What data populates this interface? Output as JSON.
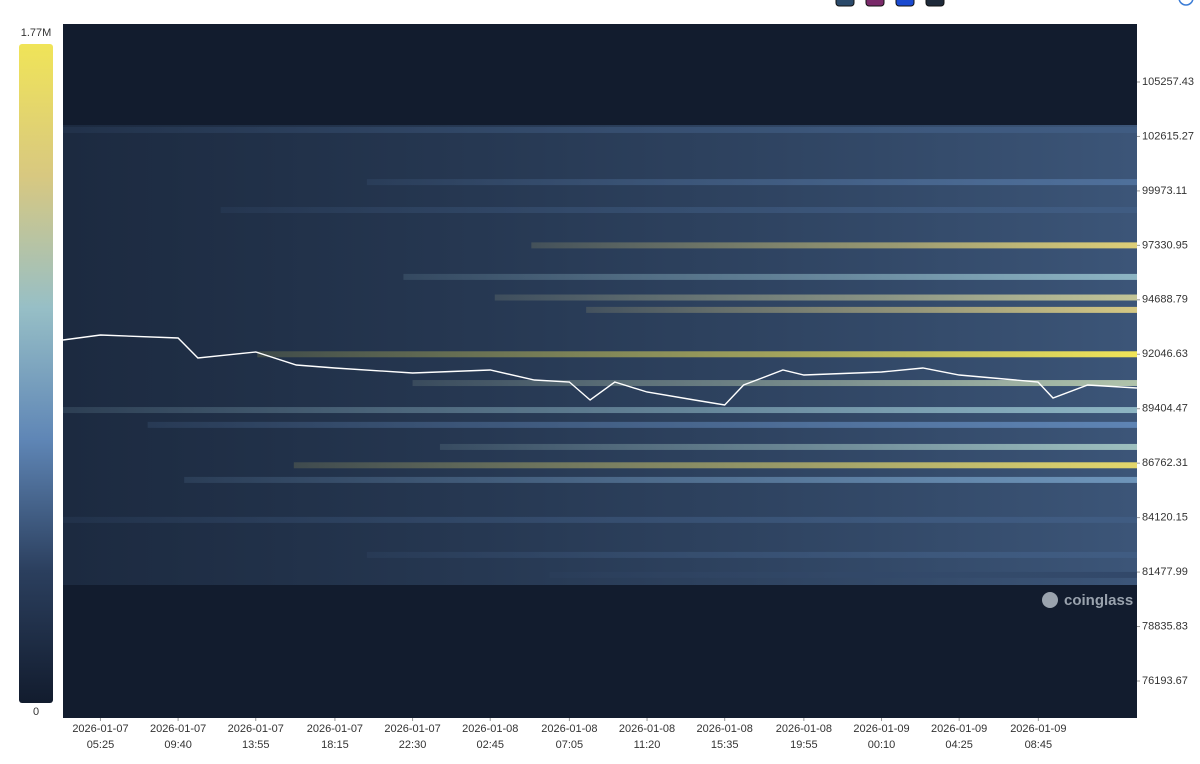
{
  "chart_data": {
    "type": "heatmap",
    "watermark": "coinglass",
    "colorscale": [
      "#121c2e",
      "#2b3f5e",
      "#5f86b6",
      "#97bfc6",
      "#d8c880",
      "#f0e458"
    ],
    "zlim": [
      0,
      1770000
    ],
    "zticks": [
      {
        "value": 1770000,
        "label": "1.77M"
      },
      0
    ],
    "ylim": [
      74398,
      108071
    ],
    "yticks": [
      105257.43,
      102615.27,
      99973.11,
      97330.95,
      94688.79,
      92046.63,
      89404.47,
      86762.31,
      84120.15,
      81477.99,
      78835.83,
      76193.67
    ],
    "xlim": [
      "2026-01-07 03:22",
      "2026-01-09 14:09"
    ],
    "xticks": [
      {
        "value": "2026-01-07 05:25",
        "label": [
          "2026-01-07",
          "05:25"
        ]
      },
      {
        "value": "2026-01-07 09:40",
        "label": [
          "2026-01-07",
          "09:40"
        ]
      },
      {
        "value": "2026-01-07 13:55",
        "label": [
          "2026-01-07",
          "13:55"
        ]
      },
      {
        "value": "2026-01-07 18:15",
        "label": [
          "2026-01-07",
          "18:15"
        ]
      },
      {
        "value": "2026-01-07 22:30",
        "label": [
          "2026-01-07",
          "22:30"
        ]
      },
      {
        "value": "2026-01-08 02:45",
        "label": [
          "2026-01-08",
          "02:45"
        ]
      },
      {
        "value": "2026-01-08 07:05",
        "label": [
          "2026-01-08",
          "07:05"
        ]
      },
      {
        "value": "2026-01-08 11:20",
        "label": [
          "2026-01-08",
          "11:20"
        ]
      },
      {
        "value": "2026-01-08 15:35",
        "label": [
          "2026-01-08",
          "15:35"
        ]
      },
      {
        "value": "2026-01-08 19:55",
        "label": [
          "2026-01-08",
          "19:55"
        ]
      },
      {
        "value": "2026-01-09 00:10",
        "label": [
          "2026-01-09",
          "00:10"
        ]
      },
      {
        "value": "2026-01-09 04:25",
        "label": [
          "2026-01-09",
          "04:25"
        ]
      },
      {
        "value": "2026-01-09 08:45",
        "label": [
          "2026-01-09",
          "08:45"
        ]
      }
    ],
    "bands": [
      {
        "price": 102930,
        "from": "2026-01-07 03:22",
        "value": 500000
      },
      {
        "price": 100400,
        "from": "2026-01-07 20:00",
        "value": 600000
      },
      {
        "price": 99046,
        "from": "2026-01-07 12:00",
        "value": 500000
      },
      {
        "price": 97330,
        "from": "2026-01-08 05:00",
        "value": 1500000
      },
      {
        "price": 95800,
        "from": "2026-01-07 22:00",
        "value": 1000000
      },
      {
        "price": 94800,
        "from": "2026-01-08 03:00",
        "value": 1300000
      },
      {
        "price": 94200,
        "from": "2026-01-08 08:00",
        "value": 1400000
      },
      {
        "price": 92046,
        "from": "2026-01-07 14:00",
        "value": 1770000
      },
      {
        "price": 90650,
        "from": "2026-01-07 22:30",
        "value": 1200000
      },
      {
        "price": 89340,
        "from": "2026-01-07 03:22",
        "value": 1000000
      },
      {
        "price": 88620,
        "from": "2026-01-07 08:00",
        "value": 700000
      },
      {
        "price": 87550,
        "from": "2026-01-08 00:00",
        "value": 1100000
      },
      {
        "price": 86660,
        "from": "2026-01-07 16:00",
        "value": 1600000
      },
      {
        "price": 85950,
        "from": "2026-01-07 10:00",
        "value": 800000
      },
      {
        "price": 84010,
        "from": "2026-01-07 03:22",
        "value": 500000
      },
      {
        "price": 82310,
        "from": "2026-01-07 20:00",
        "value": 500000
      },
      {
        "price": 81340,
        "from": "2026-01-08 06:00",
        "value": 400000
      }
    ],
    "price": {
      "x": [
        "2026-01-07 03:22",
        "2026-01-07 05:25",
        "2026-01-07 09:40",
        "2026-01-07 10:45",
        "2026-01-07 13:55",
        "2026-01-07 16:08",
        "2026-01-07 18:15",
        "2026-01-07 22:30",
        "2026-01-08 02:45",
        "2026-01-08 05:10",
        "2026-01-08 07:05",
        "2026-01-08 08:13",
        "2026-01-08 09:34",
        "2026-01-08 11:20",
        "2026-01-08 13:56",
        "2026-01-08 15:35",
        "2026-01-08 16:37",
        "2026-01-08 18:46",
        "2026-01-08 19:55",
        "2026-01-09 00:10",
        "2026-01-09 02:26",
        "2026-01-09 04:25",
        "2026-01-09 08:44",
        "2026-01-09 09:33",
        "2026-01-09 11:27",
        "2026-01-09 14:09"
      ],
      "values": [
        92739,
        92981,
        92836,
        91865,
        92156,
        91525,
        91380,
        91137,
        91283,
        90798,
        90701,
        89827,
        90701,
        90216,
        89827,
        89585,
        90555,
        91283,
        91040,
        91186,
        91380,
        91040,
        90701,
        89924,
        90555,
        90410
      ]
    }
  }
}
